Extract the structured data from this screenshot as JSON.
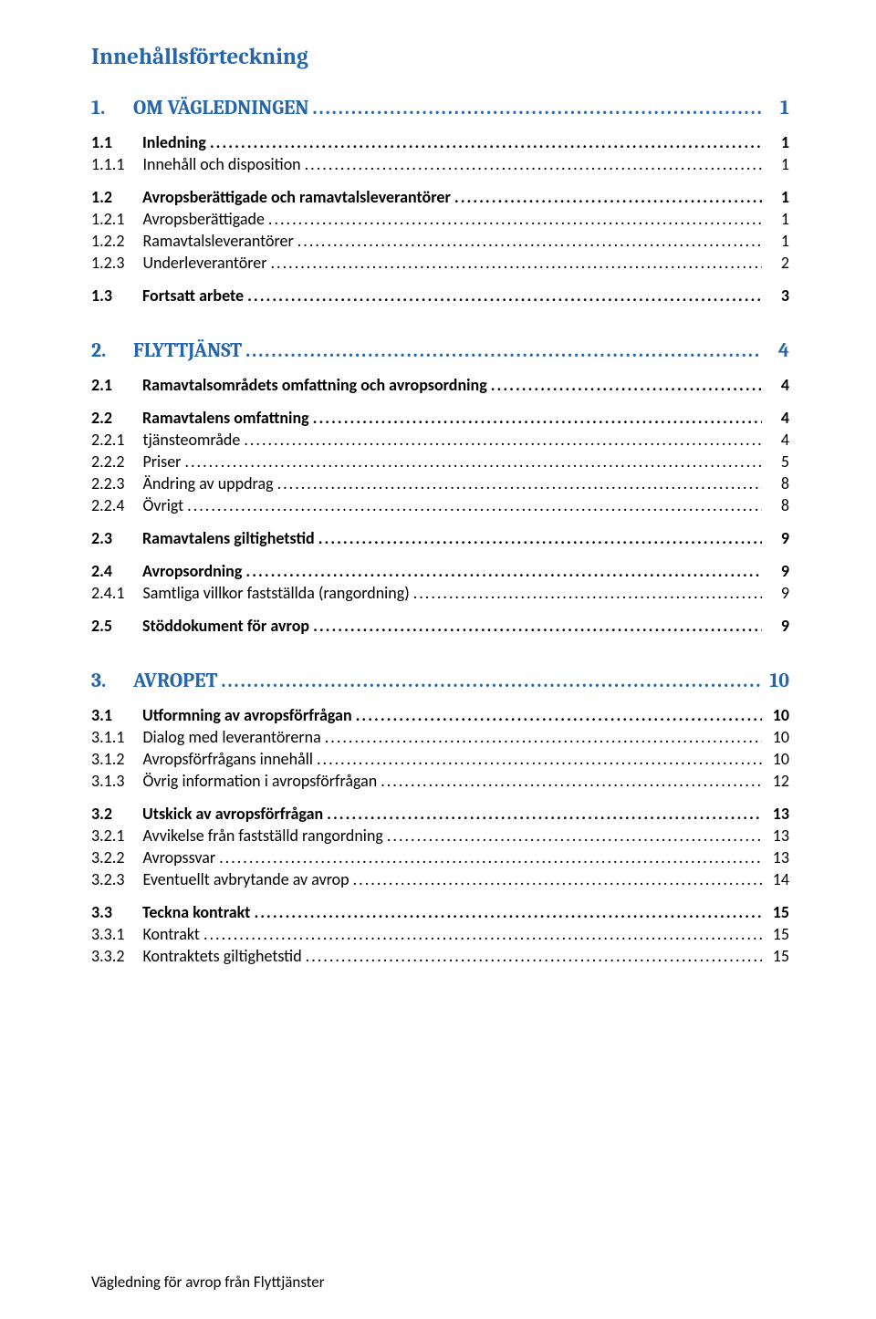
{
  "toc_title": "Innehållsförteckning",
  "footer": "Vägledning för avrop från Flyttjänster",
  "sections": [
    {
      "num": "1.",
      "text": "OM VÄGLEDNINGEN",
      "page": "1",
      "level1": [
        {
          "num": "1.1",
          "text": "Inledning",
          "page": "1",
          "level2": [
            {
              "num": "1.1.1",
              "text": "Innehåll och disposition",
              "page": "1"
            }
          ]
        },
        {
          "num": "1.2",
          "text": "Avropsberättigade och ramavtalsleverantörer",
          "page": "1",
          "level2": [
            {
              "num": "1.2.1",
              "text": "Avropsberättigade",
              "page": "1"
            },
            {
              "num": "1.2.2",
              "text": "Ramavtalsleverantörer",
              "page": "1"
            },
            {
              "num": "1.2.3",
              "text": "Underleverantörer",
              "page": "2"
            }
          ]
        },
        {
          "num": "1.3",
          "text": "Fortsatt arbete",
          "page": "3",
          "level2": []
        }
      ]
    },
    {
      "num": "2.",
      "text": "FLYTTJÄNST",
      "page": "4",
      "level1": [
        {
          "num": "2.1",
          "text": "Ramavtalsområdets omfattning och avropsordning",
          "page": "4",
          "level2": []
        },
        {
          "num": "2.2",
          "text": "Ramavtalens omfattning",
          "page": "4",
          "level2": [
            {
              "num": "2.2.1",
              "text": "tjänsteområde",
              "page": "4"
            },
            {
              "num": "2.2.2",
              "text": "Priser",
              "page": "5"
            },
            {
              "num": "2.2.3",
              "text": "Ändring av uppdrag",
              "page": "8"
            },
            {
              "num": "2.2.4",
              "text": "Övrigt",
              "page": "8"
            }
          ]
        },
        {
          "num": "2.3",
          "text": "Ramavtalens giltighetstid",
          "page": "9",
          "level2": []
        },
        {
          "num": "2.4",
          "text": "Avropsordning",
          "page": "9",
          "level2": [
            {
              "num": "2.4.1",
              "text": "Samtliga villkor fastställda (rangordning)",
              "page": "9"
            }
          ]
        },
        {
          "num": "2.5",
          "text": "Stöddokument för avrop",
          "page": "9",
          "level2": []
        }
      ]
    },
    {
      "num": "3.",
      "text": "AVROPET",
      "page": "10",
      "level1": [
        {
          "num": "3.1",
          "text": "Utformning av avropsförfrågan",
          "page": "10",
          "level2": [
            {
              "num": "3.1.1",
              "text": "Dialog med leverantörerna",
              "page": "10"
            },
            {
              "num": "3.1.2",
              "text": "Avropsförfrågans innehåll",
              "page": "10"
            },
            {
              "num": "3.1.3",
              "text": "Övrig information i avropsförfrågan",
              "page": "12"
            }
          ]
        },
        {
          "num": "3.2",
          "text": "Utskick av avropsförfrågan",
          "page": "13",
          "level2": [
            {
              "num": "3.2.1",
              "text": "Avvikelse från fastställd rangordning",
              "page": "13"
            },
            {
              "num": "3.2.2",
              "text": "Avropssvar",
              "page": "13"
            },
            {
              "num": "3.2.3",
              "text": "Eventuellt avbrytande av avrop",
              "page": "14"
            }
          ]
        },
        {
          "num": "3.3",
          "text": "Teckna kontrakt",
          "page": "15",
          "level2": [
            {
              "num": "3.3.1",
              "text": "Kontrakt",
              "page": "15"
            },
            {
              "num": "3.3.2",
              "text": "Kontraktets giltighetstid",
              "page": "15"
            }
          ]
        }
      ]
    }
  ]
}
